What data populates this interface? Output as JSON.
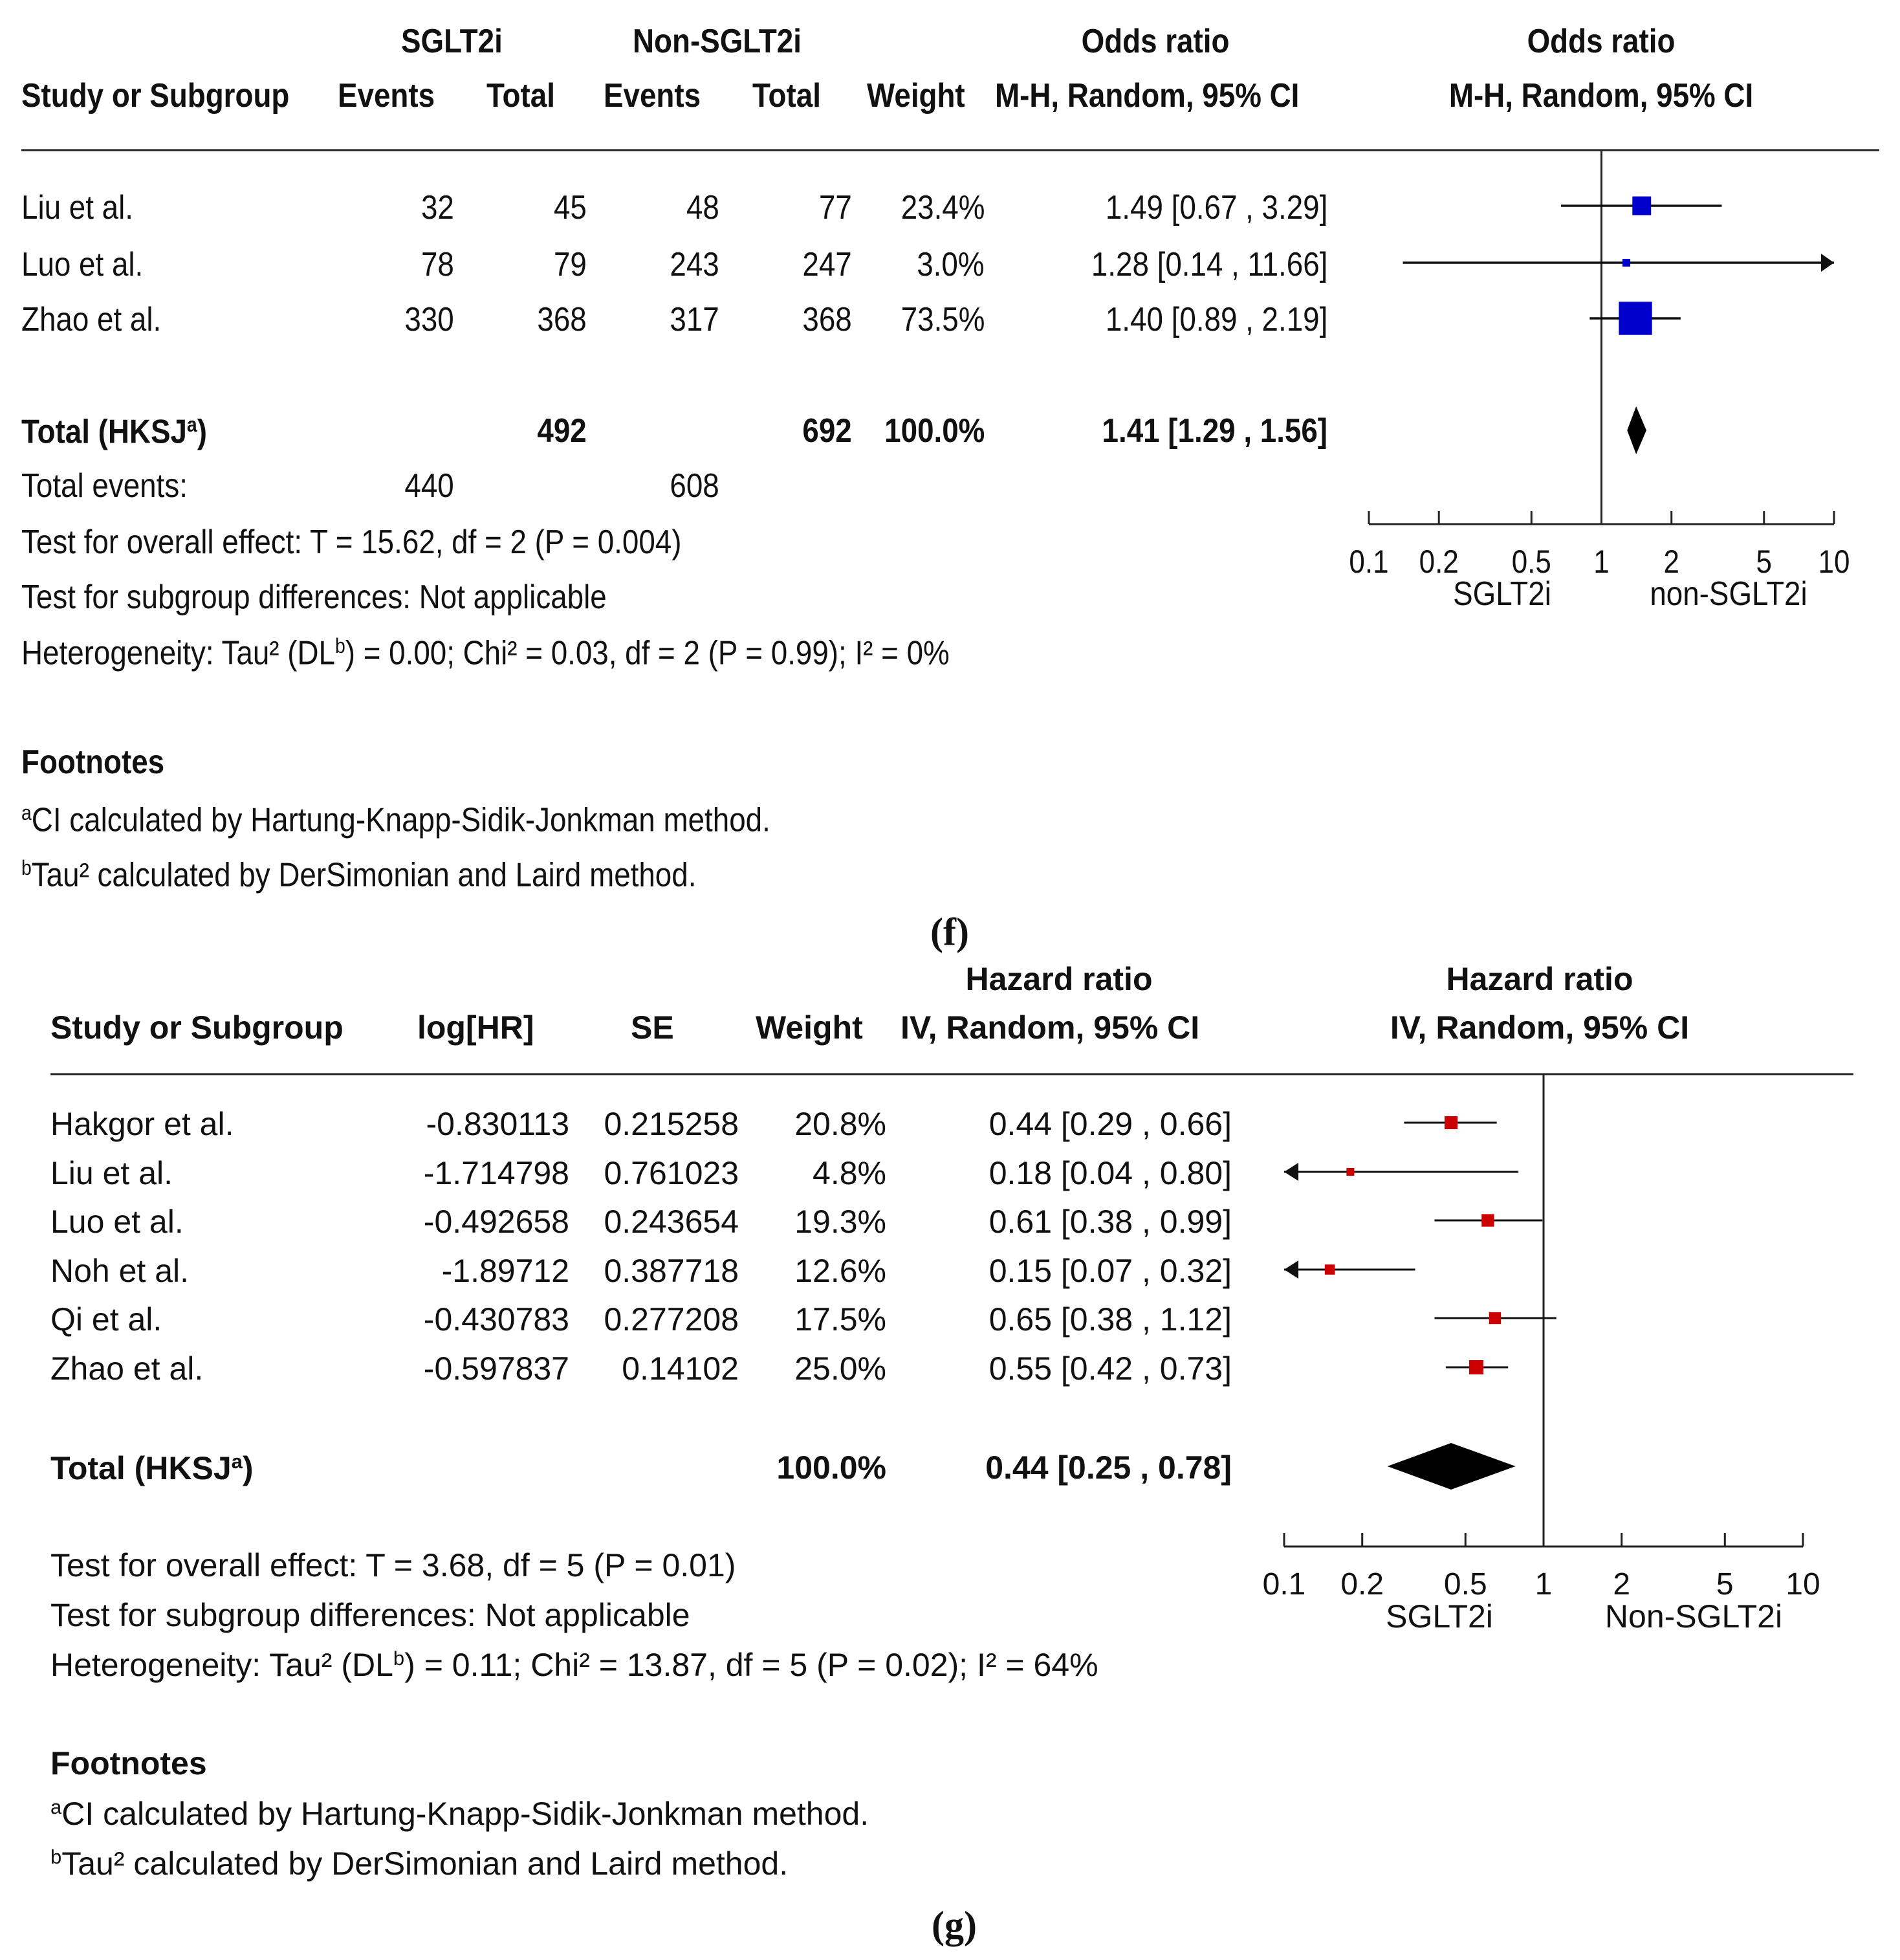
{
  "panel_f": {
    "caption": "(f)",
    "header": {
      "group1": "SGLT2i",
      "group2": "Non-SGLT2i",
      "study": "Study or Subgroup",
      "events": "Events",
      "total": "Total",
      "weight": "Weight",
      "effect_title": "Odds ratio",
      "effect_method": "M-H, Random, 95% CI",
      "plot_title": "Odds ratio",
      "plot_method": "M-H, Random, 95% CI"
    },
    "rows": [
      {
        "study": "Liu et al.",
        "e1": "32",
        "t1": "45",
        "e2": "48",
        "t2": "77",
        "weight": "23.4%",
        "ci": "1.49 [0.67 , 3.29]"
      },
      {
        "study": "Luo et al.",
        "e1": "78",
        "t1": "79",
        "e2": "243",
        "t2": "247",
        "weight": "3.0%",
        "ci": "1.28 [0.14 , 11.66]"
      },
      {
        "study": "Zhao et al.",
        "e1": "330",
        "t1": "368",
        "e2": "317",
        "t2": "368",
        "weight": "73.5%",
        "ci": "1.40 [0.89 , 2.19]"
      }
    ],
    "total": {
      "label": "Total (HKSJ",
      "sup": "a",
      "label_end": ")",
      "t1": "492",
      "t2": "692",
      "weight": "100.0%",
      "ci": "1.41 [1.29 , 1.56]"
    },
    "total_events": {
      "label": "Total events:",
      "e1": "440",
      "e2": "608"
    },
    "tests": {
      "overall": "Test for overall effect: T = 15.62, df = 2 (P = 0.004)",
      "subgroup": "Test for subgroup differences: Not applicable",
      "het_a": "Heterogeneity: Tau² (DL",
      "het_sup": "b",
      "het_b": ") = 0.00; Chi² = 0.03, df = 2 (P = 0.99); I² = 0%"
    },
    "footnotes": {
      "title": "Footnotes",
      "a_sup": "a",
      "a": "CI calculated by Hartung-Knapp-Sidik-Jonkman method.",
      "b_sup": "b",
      "b": "Tau² calculated by DerSimonian and Laird method."
    },
    "axis_labels": {
      "left": "SGLT2i",
      "right": "non-SGLT2i"
    },
    "colors": {
      "marker": "#0000cc",
      "diamond": "#000000"
    }
  },
  "panel_g": {
    "caption": "(g)",
    "header": {
      "study": "Study or Subgroup",
      "loghr": "log[HR]",
      "se": "SE",
      "weight": "Weight",
      "effect_title": "Hazard ratio",
      "effect_method": "IV, Random, 95% CI",
      "plot_title": "Hazard ratio",
      "plot_method": "IV, Random, 95% CI"
    },
    "rows": [
      {
        "study": "Hakgor et al.",
        "loghr": "-0.830113",
        "se": "0.215258",
        "weight": "20.8%",
        "ci": "0.44 [0.29 , 0.66]"
      },
      {
        "study": "Liu et al.",
        "loghr": "-1.714798",
        "se": "0.761023",
        "weight": "4.8%",
        "ci": "0.18 [0.04 , 0.80]"
      },
      {
        "study": "Luo et al.",
        "loghr": "-0.492658",
        "se": "0.243654",
        "weight": "19.3%",
        "ci": "0.61 [0.38 , 0.99]"
      },
      {
        "study": "Noh et al.",
        "loghr": "-1.89712",
        "se": "0.387718",
        "weight": "12.6%",
        "ci": "0.15 [0.07 , 0.32]"
      },
      {
        "study": "Qi et al.",
        "loghr": "-0.430783",
        "se": "0.277208",
        "weight": "17.5%",
        "ci": "0.65 [0.38 , 1.12]"
      },
      {
        "study": "Zhao et al.",
        "loghr": "-0.597837",
        "se": "0.14102",
        "weight": "25.0%",
        "ci": "0.55 [0.42 , 0.73]"
      }
    ],
    "total": {
      "label": "Total (HKSJ",
      "sup": "a",
      "label_end": ")",
      "weight": "100.0%",
      "ci": "0.44 [0.25 , 0.78]"
    },
    "tests": {
      "overall": "Test for overall effect: T = 3.68, df = 5 (P = 0.01)",
      "subgroup": "Test for subgroup differences: Not applicable",
      "het_a": "Heterogeneity: Tau² (DL",
      "het_sup": "b",
      "het_b": ") = 0.11; Chi² = 13.87, df = 5 (P = 0.02); I² = 64%"
    },
    "footnotes": {
      "title": "Footnotes",
      "a_sup": "a",
      "a": "CI calculated by Hartung-Knapp-Sidik-Jonkman method.",
      "b_sup": "b",
      "b": "Tau² calculated by DerSimonian and Laird method."
    },
    "axis_labels": {
      "left": "SGLT2i",
      "right": "Non-SGLT2i"
    },
    "colors": {
      "marker": "#cc0000",
      "diamond": "#000000"
    }
  },
  "chart_data": [
    {
      "type": "forest",
      "title": "Odds ratio — M-H, Random, 95% CI",
      "scale": "log",
      "xlim": [
        0.1,
        10
      ],
      "xticks": [
        "0.1",
        "0.2",
        "0.5",
        "1",
        "2",
        "5",
        "10"
      ],
      "reference": 1,
      "xlabel_left": "SGLT2i",
      "xlabel_right": "non-SGLT2i",
      "studies": [
        {
          "name": "Liu et al.",
          "estimate": 1.49,
          "lower": 0.67,
          "upper": 3.29,
          "weight": 23.4
        },
        {
          "name": "Luo et al.",
          "estimate": 1.28,
          "lower": 0.14,
          "upper": 11.66,
          "weight": 3.0
        },
        {
          "name": "Zhao et al.",
          "estimate": 1.4,
          "lower": 0.89,
          "upper": 2.19,
          "weight": 73.5
        }
      ],
      "pooled": {
        "name": "Total (HKSJa)",
        "estimate": 1.41,
        "lower": 1.29,
        "upper": 1.56
      }
    },
    {
      "type": "forest",
      "title": "Hazard ratio — IV, Random, 95% CI",
      "scale": "log",
      "xlim": [
        0.1,
        10
      ],
      "xticks": [
        "0.1",
        "0.2",
        "0.5",
        "1",
        "2",
        "5",
        "10"
      ],
      "reference": 1,
      "xlabel_left": "SGLT2i",
      "xlabel_right": "Non-SGLT2i",
      "studies": [
        {
          "name": "Hakgor et al.",
          "estimate": 0.44,
          "lower": 0.29,
          "upper": 0.66,
          "weight": 20.8
        },
        {
          "name": "Liu et al.",
          "estimate": 0.18,
          "lower": 0.04,
          "upper": 0.8,
          "weight": 4.8
        },
        {
          "name": "Luo et al.",
          "estimate": 0.61,
          "lower": 0.38,
          "upper": 0.99,
          "weight": 19.3
        },
        {
          "name": "Noh et al.",
          "estimate": 0.15,
          "lower": 0.07,
          "upper": 0.32,
          "weight": 12.6
        },
        {
          "name": "Qi et al.",
          "estimate": 0.65,
          "lower": 0.38,
          "upper": 1.12,
          "weight": 17.5
        },
        {
          "name": "Zhao et al.",
          "estimate": 0.55,
          "lower": 0.42,
          "upper": 0.73,
          "weight": 25.0
        }
      ],
      "pooled": {
        "name": "Total (HKSJa)",
        "estimate": 0.44,
        "lower": 0.25,
        "upper": 0.78
      }
    }
  ]
}
